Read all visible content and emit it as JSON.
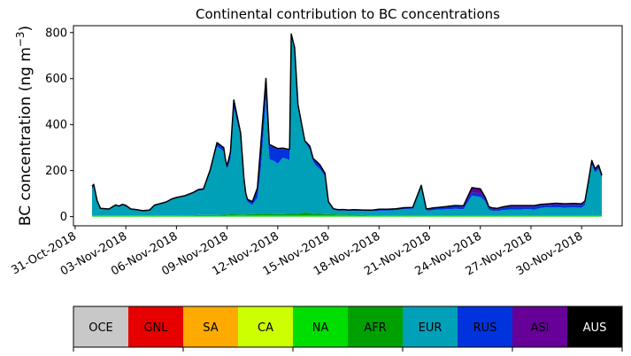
{
  "chart_data": {
    "type": "area",
    "title": "Continental contribution to BC concentrations",
    "ylabel": "BC concentration (ng m$^{-3}$)",
    "ylabel_main": "BC concentration (ng m",
    "ylabel_sup": "−3",
    "ylabel_close": ")",
    "xlabel": "",
    "ylim": [
      -40,
      830
    ],
    "yticks": [
      0,
      200,
      400,
      600,
      800
    ],
    "x_ticks": [
      "31-Oct-2018",
      "03-Nov-2018",
      "06-Nov-2018",
      "09-Nov-2018",
      "12-Nov-2018",
      "15-Nov-2018",
      "18-Nov-2018",
      "21-Nov-2018",
      "24-Nov-2018",
      "27-Nov-2018",
      "30-Nov-2018"
    ],
    "x_tick_days": [
      0,
      3,
      6,
      9,
      12,
      15,
      18,
      21,
      24,
      27,
      30
    ],
    "xlim_days": [
      -0.1,
      32.4
    ],
    "stacked": true,
    "x_days": [
      1.0,
      1.1,
      1.3,
      1.5,
      2.0,
      2.4,
      2.6,
      2.8,
      3.0,
      3.3,
      3.6,
      4.0,
      4.4,
      4.7,
      5.0,
      5.4,
      5.7,
      6.0,
      6.5,
      7.0,
      7.3,
      7.6,
      8.0,
      8.4,
      8.8,
      8.9,
      9.0,
      9.2,
      9.4,
      9.8,
      10.0,
      10.1,
      10.2,
      10.5,
      10.8,
      11.0,
      11.3,
      11.5,
      11.8,
      12.0,
      12.3,
      12.6,
      12.7,
      12.8,
      13.0,
      13.2,
      13.6,
      13.9,
      14.1,
      14.3,
      14.5,
      14.8,
      15.0,
      15.3,
      15.6,
      15.9,
      16.2,
      16.5,
      17.0,
      17.3,
      17.6,
      18.0,
      18.5,
      19.0,
      19.5,
      20.0,
      20.5,
      20.8,
      21.0,
      21.2,
      21.5,
      22.0,
      22.5,
      23.0,
      23.5,
      24.0,
      24.3,
      24.5,
      24.7,
      25.0,
      25.3,
      25.8,
      26.3,
      26.8,
      27.2,
      27.6,
      28.0,
      28.5,
      29.0,
      29.5,
      30.0,
      30.2,
      30.4,
      30.6,
      30.8,
      31.0,
      31.2
    ],
    "series": [
      {
        "name": "OCE",
        "color": "#c8c8c8",
        "values": [
          0,
          0,
          0,
          0,
          0,
          0,
          0,
          0,
          0,
          0,
          0,
          0,
          0,
          0,
          0,
          0,
          0,
          0,
          0,
          0,
          0,
          0,
          0,
          0,
          0,
          0,
          0,
          0,
          0,
          0,
          0,
          0,
          0,
          0,
          0,
          0,
          0,
          0,
          0,
          0,
          0,
          0,
          0,
          0,
          0,
          0,
          0,
          0,
          0,
          0,
          0,
          0,
          0,
          0,
          0,
          0,
          0,
          0,
          0,
          0,
          0,
          0,
          0,
          0,
          0,
          0,
          0,
          0,
          0,
          0,
          0,
          0,
          0,
          0,
          0,
          0,
          0,
          0,
          0,
          0,
          0,
          0,
          0,
          0,
          0,
          0,
          0,
          0,
          0,
          0,
          0,
          0,
          0,
          0,
          0,
          0,
          0
        ]
      },
      {
        "name": "GNL",
        "color": "#e60000",
        "values": [
          0,
          0,
          0,
          0,
          0,
          0,
          0,
          0,
          0,
          0,
          0,
          0,
          0,
          0,
          0,
          0,
          0,
          0,
          0,
          0,
          0,
          0,
          0,
          0,
          0,
          0,
          0,
          0,
          0,
          0,
          0,
          0,
          0,
          0,
          0,
          0,
          0,
          0,
          0,
          0,
          0,
          0,
          0,
          0,
          0,
          0,
          0,
          0,
          0,
          0,
          0,
          0,
          0,
          0,
          0,
          0,
          0,
          0,
          0,
          0,
          0,
          0,
          0,
          0,
          0,
          0,
          0,
          0,
          0,
          0,
          0,
          0,
          0,
          0,
          0,
          0,
          0,
          0,
          0,
          0,
          0,
          0,
          0,
          0,
          0,
          0,
          0,
          0,
          0,
          0,
          0,
          0,
          0,
          0,
          0,
          0,
          0
        ]
      },
      {
        "name": "SA",
        "color": "#ffaa00",
        "values": [
          0,
          0,
          0,
          0,
          0,
          0,
          0,
          0,
          0,
          0,
          0,
          0,
          0,
          0,
          0,
          0,
          0,
          0,
          0,
          0,
          0,
          0,
          0,
          0,
          0,
          0,
          0,
          0,
          0,
          0,
          0,
          0,
          0,
          0,
          0,
          0,
          0,
          0,
          0,
          0,
          0,
          0,
          0,
          0,
          0,
          0,
          0,
          0,
          0,
          0,
          0,
          0,
          0,
          0,
          0,
          0,
          0,
          0,
          0,
          0,
          0,
          0,
          0,
          0,
          0,
          0,
          0,
          0,
          0,
          0,
          0,
          0,
          0,
          0,
          0,
          0,
          0,
          0,
          0,
          0,
          0,
          0,
          0,
          0,
          0,
          0,
          0,
          0,
          0,
          0,
          0,
          0,
          0,
          0,
          0,
          0,
          0
        ]
      },
      {
        "name": "CA",
        "color": "#ccff00",
        "values": [
          0,
          0,
          0,
          0,
          0,
          0,
          0,
          0,
          0,
          0,
          0,
          0,
          0,
          0,
          0,
          0,
          0,
          0,
          0,
          0,
          0,
          0,
          0,
          0,
          0,
          0,
          0,
          0,
          0,
          0,
          0,
          0,
          0,
          0,
          0,
          0,
          0,
          0,
          0,
          0,
          0,
          0,
          0,
          0,
          0,
          0,
          0,
          0,
          0,
          0,
          0,
          0,
          0,
          0,
          0,
          0,
          0,
          0,
          0,
          0,
          0,
          0,
          0,
          0,
          0,
          0,
          0,
          0,
          0,
          0,
          0,
          0,
          0,
          0,
          0,
          0,
          0,
          0,
          0,
          0,
          0,
          0,
          0,
          0,
          0,
          0,
          0,
          0,
          0,
          0,
          0,
          0,
          0,
          0,
          0,
          0,
          0
        ]
      },
      {
        "name": "NA",
        "color": "#00dd00",
        "values": [
          3,
          3,
          3,
          3,
          3,
          3,
          3,
          3,
          3,
          3,
          3,
          3,
          3,
          3,
          3,
          3,
          3,
          3,
          3,
          3,
          4,
          4,
          4,
          4,
          4,
          4,
          5,
          5,
          5,
          5,
          5,
          5,
          5,
          5,
          5,
          5,
          5,
          5,
          5,
          5,
          5,
          5,
          5,
          5,
          5,
          5,
          5,
          5,
          5,
          5,
          5,
          5,
          5,
          5,
          5,
          5,
          5,
          5,
          4,
          4,
          4,
          4,
          4,
          4,
          4,
          4,
          4,
          4,
          4,
          4,
          4,
          4,
          4,
          4,
          4,
          4,
          4,
          4,
          4,
          4,
          4,
          4,
          4,
          4,
          4,
          4,
          4,
          4,
          4,
          4,
          4,
          4,
          4,
          4,
          4,
          4,
          4
        ]
      },
      {
        "name": "AFR",
        "color": "#00a000",
        "values": [
          2,
          2,
          2,
          2,
          2,
          2,
          2,
          2,
          2,
          2,
          2,
          2,
          2,
          2,
          2,
          2,
          2,
          2,
          3,
          3,
          3,
          3,
          3,
          3,
          4,
          4,
          4,
          5,
          5,
          4,
          4,
          4,
          5,
          6,
          7,
          8,
          8,
          7,
          6,
          5,
          6,
          7,
          7,
          7,
          7,
          8,
          14,
          10,
          8,
          7,
          7,
          6,
          6,
          5,
          4,
          4,
          3,
          3,
          3,
          2,
          2,
          2,
          2,
          2,
          2,
          2,
          2,
          2,
          2,
          2,
          2,
          2,
          2,
          2,
          2,
          2,
          2,
          2,
          2,
          2,
          2,
          2,
          2,
          2,
          2,
          2,
          2,
          2,
          2,
          2,
          2,
          2,
          2,
          2,
          2,
          2,
          2
        ]
      },
      {
        "name": "EUR",
        "color": "#00a0b8",
        "values": [
          115,
          125,
          60,
          28,
          25,
          42,
          38,
          44,
          40,
          25,
          23,
          18,
          20,
          42,
          48,
          56,
          68,
          75,
          82,
          95,
          106,
          108,
          185,
          298,
          275,
          230,
          200,
          240,
          460,
          340,
          145,
          85,
          55,
          40,
          70,
          200,
          498,
          238,
          230,
          220,
          245,
          237,
          232,
          775,
          720,
          468,
          305,
          277,
          225,
          207,
          195,
          165,
          48,
          20,
          17,
          18,
          17,
          18,
          18,
          18,
          18,
          20,
          20,
          22,
          27,
          28,
          124,
          22,
          20,
          23,
          25,
          26,
          28,
          26,
          85,
          80,
          60,
          25,
          20,
          18,
          22,
          25,
          25,
          27,
          25,
          32,
          35,
          35,
          33,
          34,
          33,
          45,
          135,
          220,
          185,
          202,
          160
        ]
      },
      {
        "name": "RUS",
        "color": "#0033dd",
        "values": [
          10,
          8,
          4,
          2,
          2,
          3,
          2,
          3,
          3,
          2,
          2,
          2,
          2,
          2,
          2,
          2,
          2,
          2,
          2,
          3,
          4,
          5,
          10,
          15,
          15,
          10,
          8,
          30,
          35,
          12,
          8,
          8,
          8,
          12,
          40,
          100,
          85,
          60,
          58,
          62,
          38,
          40,
          45,
          5,
          2,
          5,
          5,
          12,
          12,
          18,
          15,
          10,
          5,
          3,
          3,
          3,
          3,
          3,
          3,
          3,
          3,
          5,
          5,
          5,
          5,
          5,
          5,
          5,
          8,
          8,
          8,
          10,
          12,
          12,
          15,
          15,
          8,
          8,
          8,
          8,
          10,
          12,
          12,
          10,
          12,
          10,
          10,
          12,
          12,
          12,
          12,
          12,
          8,
          14,
          12,
          12,
          10
        ]
      },
      {
        "name": "ASI",
        "color": "#660099",
        "values": [
          2,
          2,
          1,
          1,
          1,
          1,
          1,
          1,
          1,
          1,
          1,
          1,
          1,
          1,
          1,
          1,
          1,
          1,
          1,
          1,
          1,
          1,
          1,
          2,
          2,
          2,
          2,
          2,
          2,
          2,
          2,
          2,
          2,
          2,
          3,
          5,
          5,
          4,
          4,
          4,
          4,
          4,
          4,
          2,
          1,
          1,
          1,
          2,
          2,
          3,
          3,
          3,
          1,
          1,
          1,
          1,
          1,
          1,
          1,
          1,
          1,
          1,
          1,
          1,
          1,
          1,
          1,
          1,
          1,
          1,
          1,
          2,
          2,
          3,
          20,
          20,
          8,
          4,
          4,
          4,
          4,
          5,
          5,
          5,
          5,
          5,
          4,
          5,
          5,
          5,
          5,
          5,
          3,
          4,
          4,
          4,
          4
        ]
      },
      {
        "name": "AUS",
        "color": "#000000",
        "values": [
          0,
          0,
          0,
          0,
          0,
          0,
          0,
          0,
          0,
          0,
          0,
          0,
          0,
          0,
          0,
          0,
          0,
          0,
          0,
          0,
          0,
          0,
          0,
          0,
          0,
          0,
          0,
          0,
          0,
          0,
          0,
          0,
          0,
          0,
          0,
          0,
          0,
          0,
          0,
          0,
          0,
          0,
          0,
          0,
          0,
          0,
          0,
          0,
          0,
          0,
          0,
          0,
          0,
          0,
          0,
          0,
          0,
          0,
          0,
          0,
          0,
          0,
          0,
          0,
          0,
          0,
          0,
          0,
          0,
          0,
          0,
          0,
          0,
          0,
          0,
          0,
          0,
          0,
          0,
          0,
          0,
          0,
          0,
          0,
          0,
          0,
          0,
          0,
          0,
          0,
          0,
          0,
          0,
          0,
          0,
          0,
          0
        ]
      }
    ],
    "legend": {
      "placement": "bottom",
      "entries": [
        {
          "label": "OCE",
          "color": "#c8c8c8",
          "text_color": "#000000"
        },
        {
          "label": "GNL",
          "color": "#e60000",
          "text_color": "#000000"
        },
        {
          "label": "SA",
          "color": "#ffaa00",
          "text_color": "#000000"
        },
        {
          "label": "CA",
          "color": "#ccff00",
          "text_color": "#000000"
        },
        {
          "label": "NA",
          "color": "#00dd00",
          "text_color": "#000000"
        },
        {
          "label": "AFR",
          "color": "#00a000",
          "text_color": "#000000"
        },
        {
          "label": "EUR",
          "color": "#00a0b8",
          "text_color": "#000000"
        },
        {
          "label": "RUS",
          "color": "#0033dd",
          "text_color": "#000000"
        },
        {
          "label": "ASI",
          "color": "#660099",
          "text_color": "#000000"
        },
        {
          "label": "AUS",
          "color": "#000000",
          "text_color": "#ffffff"
        }
      ]
    },
    "outline_color": "#000000",
    "grid": false
  }
}
